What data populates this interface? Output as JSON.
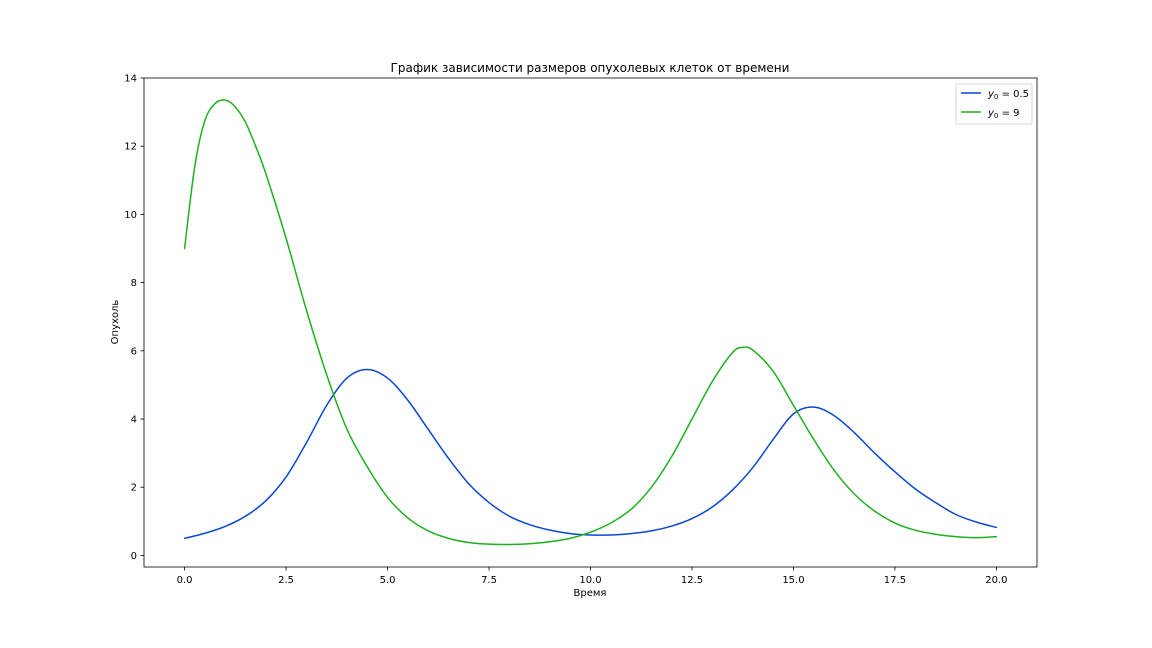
{
  "chart_data": {
    "type": "line",
    "title": "График зависимости размеров опухолевых клеток от времени",
    "xlabel": "Время",
    "ylabel": "Опухоль",
    "xlim": [
      -1.0,
      21.0
    ],
    "ylim": [
      -0.34,
      14.0
    ],
    "xticks": [
      0.0,
      2.5,
      5.0,
      7.5,
      10.0,
      12.5,
      15.0,
      17.5,
      20.0
    ],
    "xtick_labels": [
      "0.0",
      "2.5",
      "5.0",
      "7.5",
      "10.0",
      "12.5",
      "15.0",
      "17.5",
      "20.0"
    ],
    "yticks": [
      0,
      2,
      4,
      6,
      8,
      10,
      12,
      14
    ],
    "ytick_labels": [
      "0",
      "2",
      "4",
      "6",
      "8",
      "10",
      "12",
      "14"
    ],
    "grid": false,
    "legend_position": "top-right",
    "series": [
      {
        "name_base": "y",
        "name_sub": "0",
        "name_rest": " = 0.5",
        "color": "#0a47d1",
        "x": [
          0.0,
          0.5,
          1.0,
          1.5,
          2.0,
          2.5,
          3.0,
          3.5,
          4.0,
          4.5,
          5.0,
          5.5,
          6.0,
          6.5,
          7.0,
          7.5,
          8.0,
          8.5,
          9.0,
          9.5,
          10.0,
          10.5,
          11.0,
          11.5,
          12.0,
          12.5,
          13.0,
          13.5,
          14.0,
          14.5,
          15.0,
          15.5,
          16.0,
          16.5,
          17.0,
          17.5,
          18.0,
          18.5,
          19.0,
          19.5,
          20.0
        ],
        "y": [
          0.5,
          0.65,
          0.85,
          1.15,
          1.6,
          2.3,
          3.3,
          4.4,
          5.2,
          5.45,
          5.2,
          4.55,
          3.7,
          2.85,
          2.1,
          1.55,
          1.15,
          0.9,
          0.74,
          0.64,
          0.6,
          0.6,
          0.64,
          0.72,
          0.86,
          1.08,
          1.42,
          1.92,
          2.58,
          3.4,
          4.15,
          4.35,
          4.1,
          3.6,
          3.0,
          2.45,
          1.95,
          1.55,
          1.2,
          0.98,
          0.82
        ]
      },
      {
        "name_base": "y",
        "name_sub": "0",
        "name_rest": " = 9",
        "color": "#1db11d",
        "x": [
          0.0,
          0.25,
          0.5,
          0.75,
          1.0,
          1.25,
          1.5,
          1.75,
          2.0,
          2.5,
          3.0,
          3.5,
          4.0,
          4.5,
          5.0,
          5.5,
          6.0,
          6.5,
          7.0,
          7.5,
          8.0,
          8.5,
          9.0,
          9.5,
          10.0,
          10.5,
          11.0,
          11.5,
          12.0,
          12.5,
          13.0,
          13.5,
          13.75,
          14.0,
          14.5,
          15.0,
          15.5,
          16.0,
          16.5,
          17.0,
          17.5,
          18.0,
          18.5,
          19.0,
          19.5,
          20.0
        ],
        "y": [
          9.0,
          11.4,
          12.75,
          13.25,
          13.35,
          13.15,
          12.7,
          12.0,
          11.2,
          9.3,
          7.2,
          5.3,
          3.7,
          2.6,
          1.7,
          1.1,
          0.72,
          0.5,
          0.38,
          0.33,
          0.32,
          0.34,
          0.4,
          0.5,
          0.68,
          0.95,
          1.35,
          2.0,
          2.9,
          4.0,
          5.1,
          5.95,
          6.1,
          6.02,
          5.4,
          4.4,
          3.4,
          2.5,
          1.8,
          1.3,
          0.95,
          0.74,
          0.62,
          0.55,
          0.52,
          0.55
        ]
      }
    ]
  }
}
